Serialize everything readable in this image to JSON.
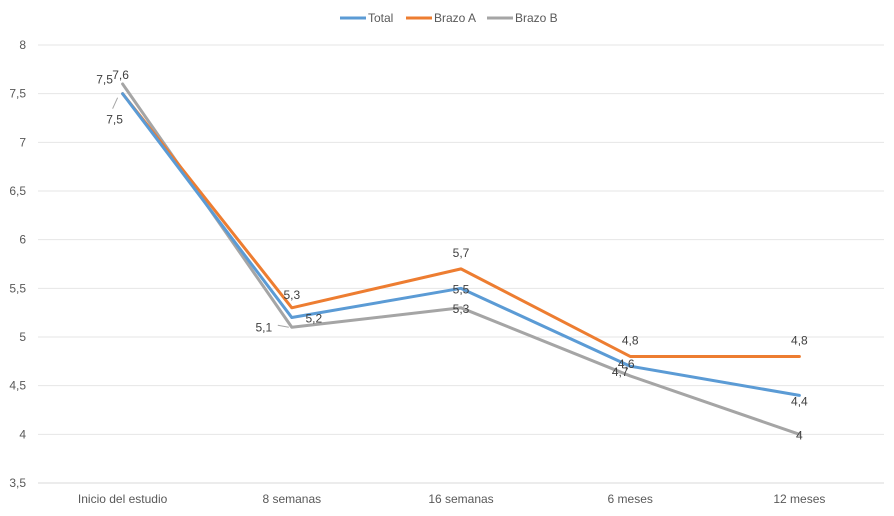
{
  "chart_data": {
    "type": "line",
    "categories": [
      "Inicio del estudio",
      "8 semanas",
      "16 semanas",
      "6 meses",
      "12 meses"
    ],
    "series": [
      {
        "name": "Total",
        "color": "#5B9BD5",
        "values": [
          7.5,
          5.2,
          5.5,
          4.7,
          4.4
        ],
        "labels": [
          "7,5",
          "5,2",
          "5,5",
          "4,7",
          "4,4"
        ]
      },
      {
        "name": "Brazo A",
        "color": "#ED7D31",
        "values": [
          7.5,
          5.3,
          5.7,
          4.8,
          4.8
        ],
        "labels": [
          "7,5",
          "5,3",
          "5,7",
          "4,8",
          "4,8"
        ]
      },
      {
        "name": "Brazo B",
        "color": "#A5A5A5",
        "values": [
          7.6,
          5.1,
          5.3,
          4.6,
          4.0
        ],
        "labels": [
          "7,6",
          "5,1",
          "5,3",
          "4,6",
          "4"
        ]
      }
    ],
    "yticks": [
      "3,5",
      "4",
      "4,5",
      "5",
      "5,5",
      "6",
      "6,5",
      "7",
      "7,5",
      "8"
    ],
    "ylim": [
      3.5,
      8
    ],
    "grid": true,
    "legend": "top-center",
    "title": "",
    "xlabel": "",
    "ylabel": ""
  }
}
